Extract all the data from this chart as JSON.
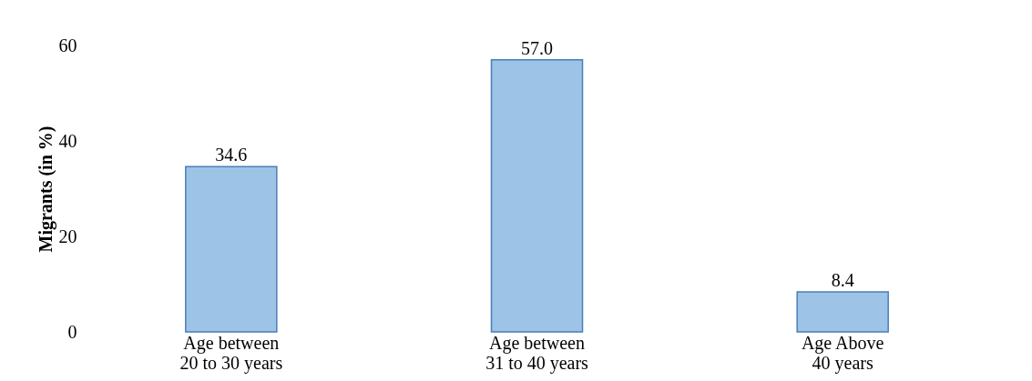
{
  "chart_data": {
    "type": "bar",
    "ylabel": "Migrants (in %)",
    "categories": [
      "Age between 20 to 30 years",
      "Age between 31 to 40 years",
      "Age Above 40 years"
    ],
    "values": [
      34.6,
      57.0,
      8.4
    ],
    "value_labels": [
      "34.6",
      "57.0",
      "8.4"
    ],
    "color": "#9dc3e6",
    "ylim": [
      0,
      60
    ],
    "yticks": [
      0,
      20,
      40,
      60
    ],
    "grid": false
  }
}
